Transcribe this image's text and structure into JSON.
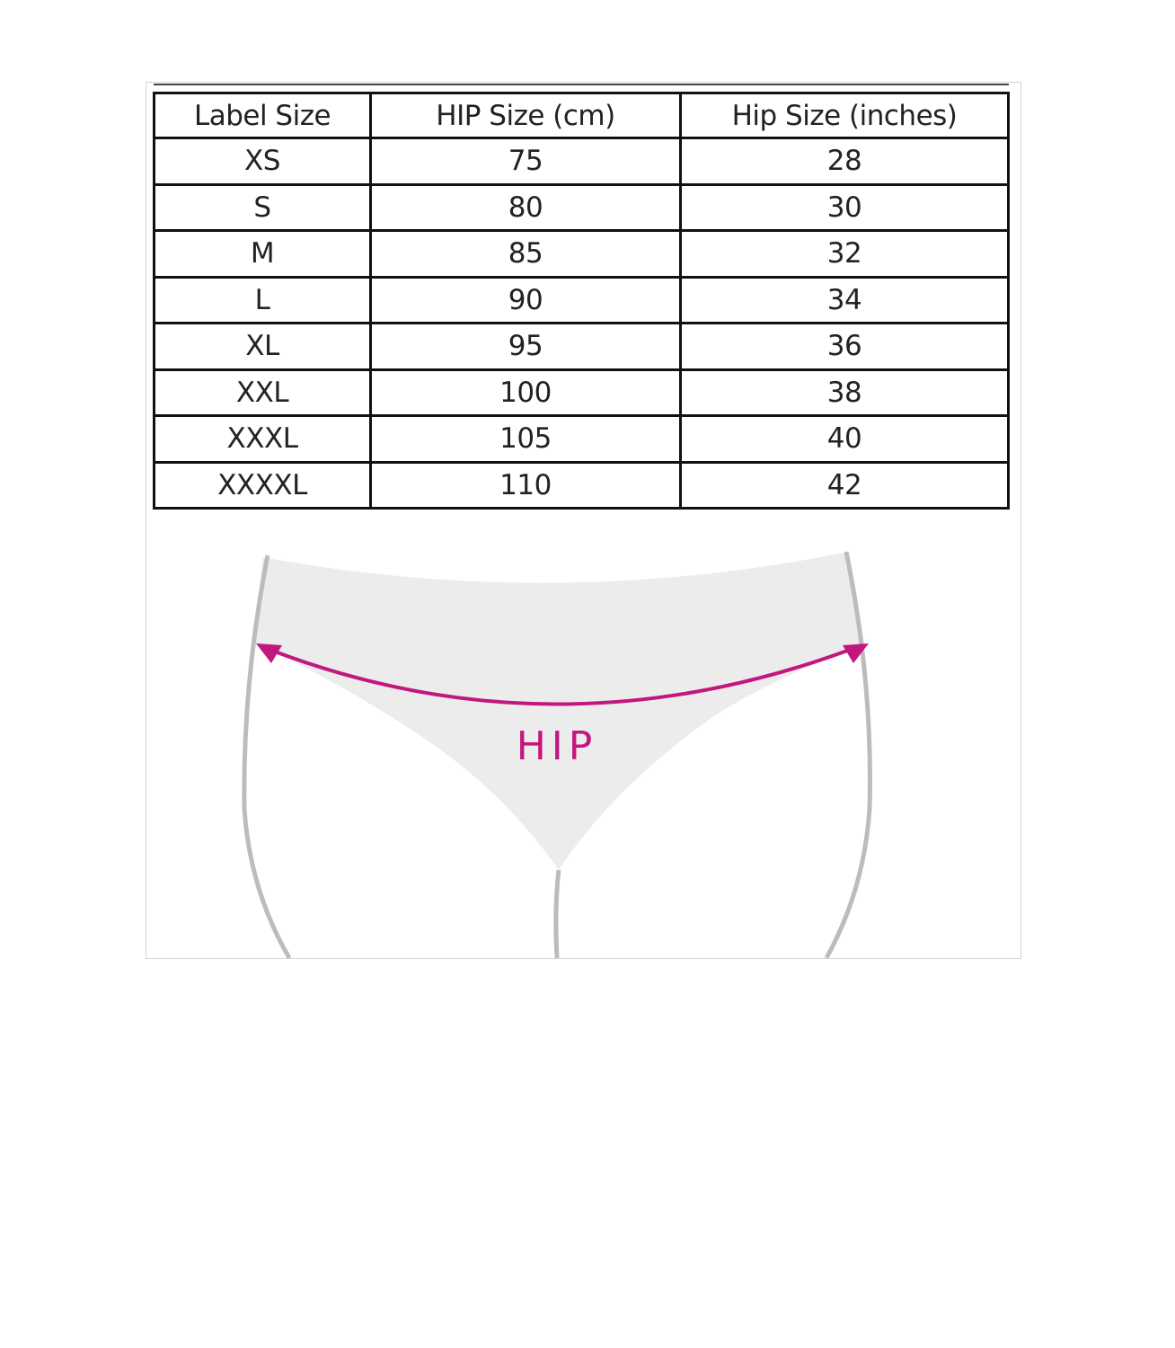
{
  "table": {
    "headers": [
      "Label Size",
      "HIP Size (cm)",
      "Hip Size (inches)"
    ],
    "rows": [
      [
        "XS",
        "75",
        "28"
      ],
      [
        "S",
        "80",
        "30"
      ],
      [
        "M",
        "85",
        "32"
      ],
      [
        "L",
        "90",
        "34"
      ],
      [
        "XL",
        "95",
        "36"
      ],
      [
        "XXL",
        "100",
        "38"
      ],
      [
        "XXXL",
        "105",
        "40"
      ],
      [
        "XXXXL",
        "110",
        "42"
      ]
    ]
  },
  "illustration": {
    "label": "HIP",
    "accent_color": "#c2177f",
    "garment_color": "#ececec",
    "outline_color": "#b8b8b8"
  }
}
